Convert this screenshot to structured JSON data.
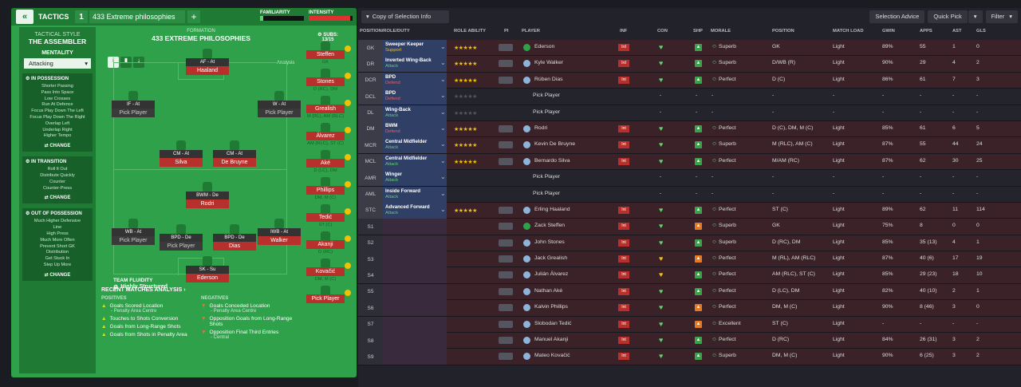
{
  "header": {
    "back_label": "«",
    "tactics_label": "TACTICS",
    "tactic_number": "1",
    "tactic_name": "433 Extreme philosophies",
    "add_label": "+",
    "familiarity_label": "FAMILIARITY",
    "intensity_label": "INTENSITY"
  },
  "style": {
    "label": "TACTICAL STYLE",
    "name": "THE ASSEMBLER",
    "mentality_label": "MENTALITY",
    "mentality_value": "Attacking"
  },
  "sections": [
    {
      "title": "IN POSSESSION",
      "items": [
        "Shorter Passing",
        "Pass Into Space",
        "Low Crosses",
        "Run At Defence",
        "Focus Play Down The Left",
        "Focus Play Down The Right",
        "Overlap Left",
        "Underlap Right",
        "Higher Tempo"
      ],
      "change": "CHANGE"
    },
    {
      "title": "IN TRANSITION",
      "items": [
        "Roll It Out",
        "Distribute Quickly",
        "Counter",
        "Counter-Press"
      ],
      "change": "CHANGE"
    },
    {
      "title": "OUT OF POSSESSION",
      "items": [
        "Much Higher Defensive",
        "Line",
        "High Press",
        "Much More Often",
        "Prevent Short GK",
        "Distribution",
        "Get Stuck In",
        "Step Up More"
      ],
      "change": "CHANGE"
    }
  ],
  "formation": {
    "label": "FORMATION",
    "name": "433 EXTREME PHILOSOPHIES",
    "subs_label": "SUBS:",
    "subs_count": "13/15",
    "analysis_label": "Analysis",
    "fluidity_label": "TEAM FLUIDITY",
    "fluidity_value": "Highly Structured"
  },
  "pitch_slots": [
    {
      "role": "AF - At",
      "name": "Haaland",
      "pick": false
    },
    {
      "role": "IF - At",
      "name": "Pick Player",
      "pick": true
    },
    {
      "role": "W - At",
      "name": "Pick Player",
      "pick": true
    },
    {
      "role": "CM - At",
      "name": "Silva",
      "pick": false
    },
    {
      "role": "CM - At",
      "name": "De Bruyne",
      "pick": false
    },
    {
      "role": "BWM - De",
      "name": "Rodri",
      "pick": false
    },
    {
      "role": "WB - At",
      "name": "Pick Player",
      "pick": true
    },
    {
      "role": "BPD - De",
      "name": "Pick Player",
      "pick": true
    },
    {
      "role": "BPD - De",
      "name": "Dias",
      "pick": false
    },
    {
      "role": "IWB - At",
      "name": "Walker",
      "pick": false
    },
    {
      "role": "SK - Su",
      "name": "Ederson",
      "pick": false
    }
  ],
  "subs": [
    {
      "name": "Steffen",
      "pos": "GK"
    },
    {
      "name": "Stones",
      "pos": "D (RC), DM"
    },
    {
      "name": "Grealish",
      "pos": "M (RL), AM (RLC)"
    },
    {
      "name": "Álvarez",
      "pos": "AM (RLC), ST (C)"
    },
    {
      "name": "Aké",
      "pos": "D (LC), DM"
    },
    {
      "name": "Phillips",
      "pos": "DM, M (C)"
    },
    {
      "name": "Tedić",
      "pos": "ST (C)"
    },
    {
      "name": "Akanji",
      "pos": "D (RC)"
    },
    {
      "name": "Kovačić",
      "pos": "DM, M (C)"
    },
    {
      "name": "Pick Player",
      "pos": ""
    }
  ],
  "analysis": {
    "title": "RECENT MATCHES ANALYSIS ›",
    "positives_label": "POSITIVES",
    "negatives_label": "NEGATIVES",
    "positives": [
      {
        "text": "Goals Scored Location",
        "sub": "- Penalty Area Centre"
      },
      {
        "text": "Touches to Shots Conversion",
        "sub": ""
      },
      {
        "text": "Goals from Long-Range Shots",
        "sub": ""
      },
      {
        "text": "Goals from Shots in Penalty Area",
        "sub": ""
      }
    ],
    "negatives": [
      {
        "text": "Goals Conceded Location",
        "sub": "- Penalty Area Centre"
      },
      {
        "text": "Opposition Goals from Long-Range Shots",
        "sub": ""
      },
      {
        "text": "Opposition Final Third Entries",
        "sub": "- Central"
      }
    ]
  },
  "toolbar": {
    "copy_label": "Copy of Selection Info",
    "advice_label": "Selection Advice",
    "quickpick_label": "Quick Pick",
    "filter_label": "Filter"
  },
  "columns": [
    "POSITION/ROLE/DUTY",
    "ROLE ABILITY",
    "PI",
    "PLAYER",
    "INF",
    "CON",
    "SHP",
    "MORALE",
    "POSITION",
    "MATCH LOAD",
    "GWIN",
    "APPS",
    "AST",
    "GLS"
  ],
  "rows": [
    {
      "pos": "GK",
      "role": "Sweeper Keeper",
      "duty": "Support",
      "stars": "★★★★★",
      "player": "Ederson",
      "inf": "Ird",
      "morale": "Superb",
      "position": "GK",
      "load": "Light",
      "gwin": "89%",
      "apps": "55",
      "ast": "1",
      "gls": "0",
      "filled": true
    },
    {
      "pos": "DR",
      "role": "Inverted Wing-Back",
      "duty": "Attack",
      "stars": "★★★★★",
      "player": "Kyle Walker",
      "inf": "Ird",
      "morale": "Superb",
      "position": "D/WB (R)",
      "load": "Light",
      "gwin": "90%",
      "apps": "29",
      "ast": "4",
      "gls": "2",
      "filled": true
    },
    {
      "pos": "DCR",
      "role": "BPD",
      "duty": "Defend",
      "stars": "★★★★★",
      "player": "Rúben Dias",
      "inf": "Int",
      "morale": "Perfect",
      "position": "D (C)",
      "load": "Light",
      "gwin": "86%",
      "apps": "61",
      "ast": "7",
      "gls": "3",
      "filled": true
    },
    {
      "pos": "DCL",
      "role": "BPD",
      "duty": "Defend",
      "stars": "★★★★★",
      "player": "Pick Player",
      "inf": "",
      "morale": "-",
      "position": "-",
      "load": "-",
      "gwin": "-",
      "apps": "-",
      "ast": "-",
      "gls": "-",
      "filled": false
    },
    {
      "pos": "DL",
      "role": "Wing-Back",
      "duty": "Attack",
      "stars": "★★★★★",
      "player": "Pick Player",
      "inf": "",
      "morale": "-",
      "position": "-",
      "load": "-",
      "gwin": "-",
      "apps": "-",
      "ast": "-",
      "gls": "-",
      "filled": false
    },
    {
      "pos": "DM",
      "role": "BWM",
      "duty": "Defend",
      "stars": "★★★★★",
      "player": "Rodri",
      "inf": "Int",
      "morale": "Perfect",
      "position": "D (C), DM, M (C)",
      "load": "Light",
      "gwin": "85%",
      "apps": "61",
      "ast": "6",
      "gls": "5",
      "filled": true
    },
    {
      "pos": "MCR",
      "role": "Central Midfielder",
      "duty": "Attack",
      "stars": "★★★★★",
      "player": "Kevin De Bruyne",
      "inf": "Int",
      "morale": "Superb",
      "position": "M (RLC), AM (C)",
      "load": "Light",
      "gwin": "87%",
      "apps": "55",
      "ast": "44",
      "gls": "24",
      "filled": true
    },
    {
      "pos": "MCL",
      "role": "Central Midfielder",
      "duty": "Attack",
      "stars": "★★★★★",
      "player": "Bernardo Silva",
      "inf": "Int",
      "morale": "Perfect",
      "position": "M/AM (RC)",
      "load": "Light",
      "gwin": "87%",
      "apps": "62",
      "ast": "30",
      "gls": "25",
      "filled": true
    },
    {
      "pos": "AMR",
      "role": "Winger",
      "duty": "Attack",
      "stars": "",
      "player": "Pick Player",
      "inf": "",
      "morale": "-",
      "position": "-",
      "load": "-",
      "gwin": "-",
      "apps": "-",
      "ast": "-",
      "gls": "-",
      "filled": false
    },
    {
      "pos": "AML",
      "role": "Inside Forward",
      "duty": "Attack",
      "stars": "",
      "player": "Pick Player",
      "inf": "",
      "morale": "-",
      "position": "-",
      "load": "-",
      "gwin": "-",
      "apps": "-",
      "ast": "-",
      "gls": "-",
      "filled": false
    },
    {
      "pos": "STC",
      "role": "Advanced Forward",
      "duty": "Attack",
      "stars": "★★★★★",
      "player": "Erling Haaland",
      "inf": "Int",
      "morale": "Perfect",
      "position": "ST (C)",
      "load": "Light",
      "gwin": "89%",
      "apps": "62",
      "ast": "11",
      "gls": "114",
      "filled": true
    },
    {
      "pos": "S1",
      "role": "",
      "duty": "",
      "stars": "",
      "player": "Zack Steffen",
      "inf": "Int",
      "morale": "Superb",
      "position": "GK",
      "load": "Light",
      "gwin": "75%",
      "apps": "8",
      "ast": "0",
      "gls": "0",
      "filled": true
    },
    {
      "pos": "S2",
      "role": "",
      "duty": "",
      "stars": "",
      "player": "John Stones",
      "inf": "Int",
      "morale": "Superb",
      "position": "D (RC), DM",
      "load": "Light",
      "gwin": "85%",
      "apps": "35 (13)",
      "ast": "4",
      "gls": "1",
      "filled": true
    },
    {
      "pos": "S3",
      "role": "",
      "duty": "",
      "stars": "",
      "player": "Jack Grealish",
      "inf": "Int",
      "morale": "Perfect",
      "position": "M (RL), AM (RLC)",
      "load": "Light",
      "gwin": "87%",
      "apps": "40 (6)",
      "ast": "17",
      "gls": "19",
      "filled": true
    },
    {
      "pos": "S4",
      "role": "",
      "duty": "",
      "stars": "",
      "player": "Julián Álvarez",
      "inf": "Int",
      "morale": "Perfect",
      "position": "AM (RLC), ST (C)",
      "load": "Light",
      "gwin": "85%",
      "apps": "29 (23)",
      "ast": "18",
      "gls": "10",
      "filled": true
    },
    {
      "pos": "S5",
      "role": "",
      "duty": "",
      "stars": "",
      "player": "Nathan Aké",
      "inf": "Int",
      "morale": "Perfect",
      "position": "D (LC), DM",
      "load": "Light",
      "gwin": "82%",
      "apps": "40 (10)",
      "ast": "2",
      "gls": "1",
      "filled": true
    },
    {
      "pos": "S6",
      "role": "",
      "duty": "",
      "stars": "",
      "player": "Kalvin Phillips",
      "inf": "Int",
      "morale": "Perfect",
      "position": "DM, M (C)",
      "load": "Light",
      "gwin": "90%",
      "apps": "8 (46)",
      "ast": "3",
      "gls": "0",
      "filled": true
    },
    {
      "pos": "S7",
      "role": "",
      "duty": "",
      "stars": "",
      "player": "Slobodan Tedić",
      "inf": "Int",
      "morale": "Excellent",
      "position": "ST (C)",
      "load": "Light",
      "gwin": "-",
      "apps": "-",
      "ast": "-",
      "gls": "-",
      "filled": true
    },
    {
      "pos": "S8",
      "role": "",
      "duty": "",
      "stars": "",
      "player": "Manuel Akanji",
      "inf": "Int",
      "morale": "Perfect",
      "position": "D (RC)",
      "load": "Light",
      "gwin": "84%",
      "apps": "26 (31)",
      "ast": "3",
      "gls": "2",
      "filled": true
    },
    {
      "pos": "S9",
      "role": "",
      "duty": "",
      "stars": "",
      "player": "Mateo Kovačić",
      "inf": "Int",
      "morale": "Superb",
      "position": "DM, M (C)",
      "load": "Light",
      "gwin": "90%",
      "apps": "6 (25)",
      "ast": "3",
      "gls": "2",
      "filled": true
    }
  ],
  "colors": {
    "pitch": "#2fa14a",
    "player_red": "#b8302c",
    "defend": "#ff5a5a",
    "attack": "#5fd16e",
    "support": "#f2c000"
  }
}
